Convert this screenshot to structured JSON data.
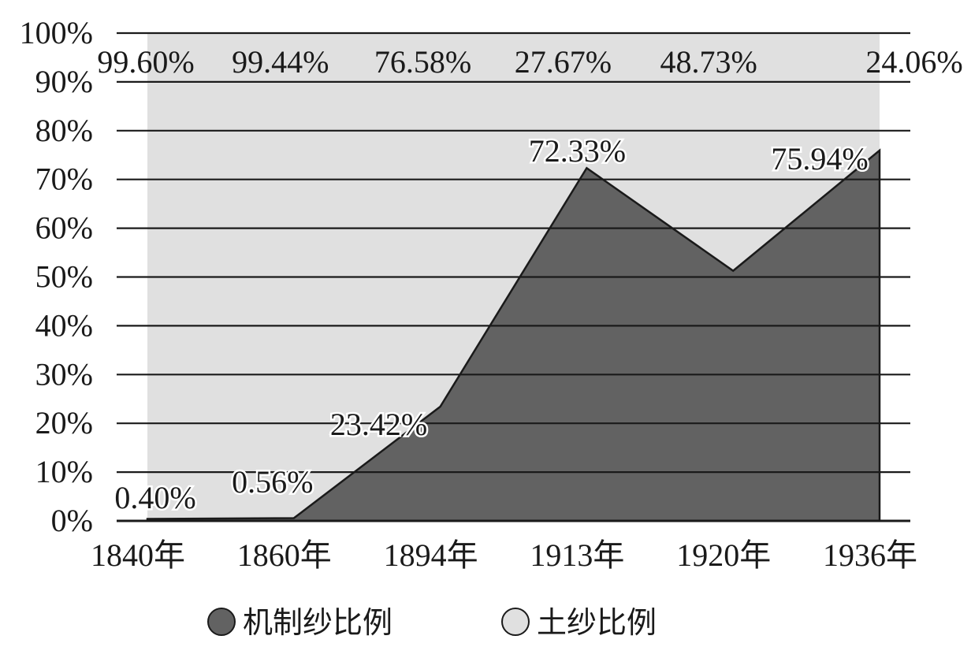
{
  "chart_data": {
    "type": "area",
    "stacked": true,
    "categories": [
      "1840年",
      "1860年",
      "1894年",
      "1913年",
      "1920年",
      "1936年"
    ],
    "series": [
      {
        "name": "机制纱比例",
        "values": [
          0.4,
          0.56,
          23.42,
          72.33,
          51.27,
          75.94
        ],
        "data_labels": [
          "0.40%",
          "0.56%",
          "23.42%",
          "72.33%",
          "",
          "75.94%"
        ],
        "color": "#626262"
      },
      {
        "name": "土纱比例",
        "values": [
          99.6,
          99.44,
          76.58,
          27.67,
          48.73,
          24.06
        ],
        "data_labels": [
          "99.60%",
          "99.44%",
          "76.58%",
          "27.67%",
          "48.73%",
          "24.06%"
        ],
        "color": "#e0e0e0"
      }
    ],
    "ylim": [
      0,
      100
    ],
    "y_ticks": [
      "0%",
      "10%",
      "20%",
      "30%",
      "40%",
      "50%",
      "60%",
      "70%",
      "80%",
      "90%",
      "100%"
    ],
    "grid": true,
    "legend_position": "bottom"
  }
}
